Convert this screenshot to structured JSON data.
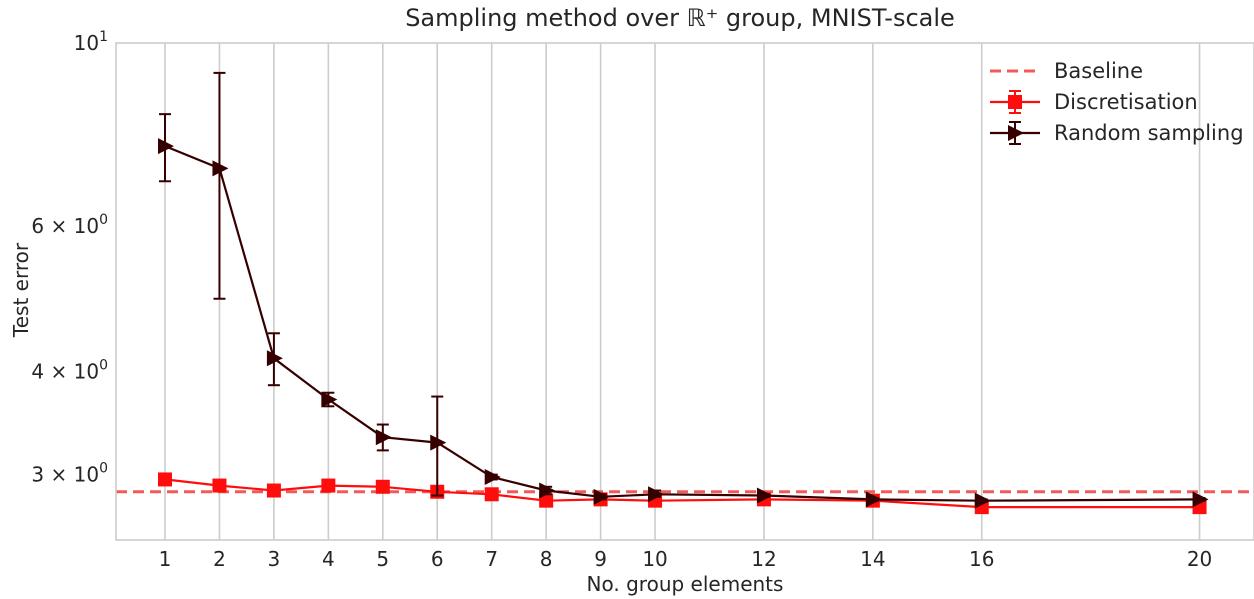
{
  "chart_data": {
    "type": "line",
    "title": "Sampling method over ℝ⁺ group, MNIST-scale",
    "xlabel": "No. group elements",
    "ylabel": "Test error",
    "yscale": "log",
    "ylim": [
      2.5,
      10.0
    ],
    "xlim": [
      0.1,
      21.0
    ],
    "grid": "vertical",
    "legend_position": "top-right",
    "x": [
      1,
      2,
      3,
      4,
      5,
      6,
      7,
      8,
      9,
      10,
      12,
      14,
      16,
      20
    ],
    "xticks": [
      1,
      2,
      3,
      4,
      5,
      6,
      7,
      8,
      9,
      10,
      12,
      14,
      16,
      20
    ],
    "xtick_labels": [
      "1",
      "2",
      "3",
      "4",
      "5",
      "6",
      "7",
      "8",
      "9",
      "10",
      "12",
      "14",
      "16",
      "20"
    ],
    "yticks": [
      {
        "value": 10,
        "base": "10",
        "exp": "1"
      },
      {
        "value": 6,
        "base": "6 × 10",
        "exp": "0"
      },
      {
        "value": 4,
        "base": "4 × 10",
        "exp": "0"
      },
      {
        "value": 3,
        "base": "3 × 10",
        "exp": "0"
      }
    ],
    "baseline": {
      "name": "Baseline",
      "value": 2.86,
      "color": "#f15a5a"
    },
    "series": [
      {
        "name": "Discretisation",
        "marker": "square",
        "color": "#ff0d0d",
        "values": [
          2.96,
          2.91,
          2.87,
          2.91,
          2.9,
          2.86,
          2.84,
          2.79,
          2.8,
          2.79,
          2.8,
          2.79,
          2.74,
          2.74
        ],
        "err_low": [
          0.04,
          0.03,
          0.03,
          0.02,
          0.02,
          0.03,
          0.02,
          0.02,
          0.02,
          0.02,
          0.02,
          0.02,
          0.02,
          0.02
        ],
        "err_high": [
          0.04,
          0.03,
          0.03,
          0.02,
          0.02,
          0.03,
          0.02,
          0.02,
          0.02,
          0.02,
          0.02,
          0.02,
          0.02,
          0.02
        ]
      },
      {
        "name": "Random sampling",
        "marker": "triangle-right",
        "color": "#360000",
        "values": [
          7.5,
          7.05,
          4.15,
          3.7,
          3.33,
          3.28,
          2.98,
          2.87,
          2.82,
          2.84,
          2.83,
          2.8,
          2.79,
          2.8
        ],
        "err_low": [
          0.7,
          2.15,
          0.3,
          0.07,
          0.12,
          0.45,
          0.02,
          0.03,
          0.02,
          0.02,
          0.01,
          0.01,
          0.01,
          0.01
        ],
        "err_high": [
          0.7,
          2.15,
          0.3,
          0.07,
          0.12,
          0.45,
          0.02,
          0.03,
          0.02,
          0.03,
          0.01,
          0.01,
          0.01,
          0.01
        ]
      }
    ]
  }
}
